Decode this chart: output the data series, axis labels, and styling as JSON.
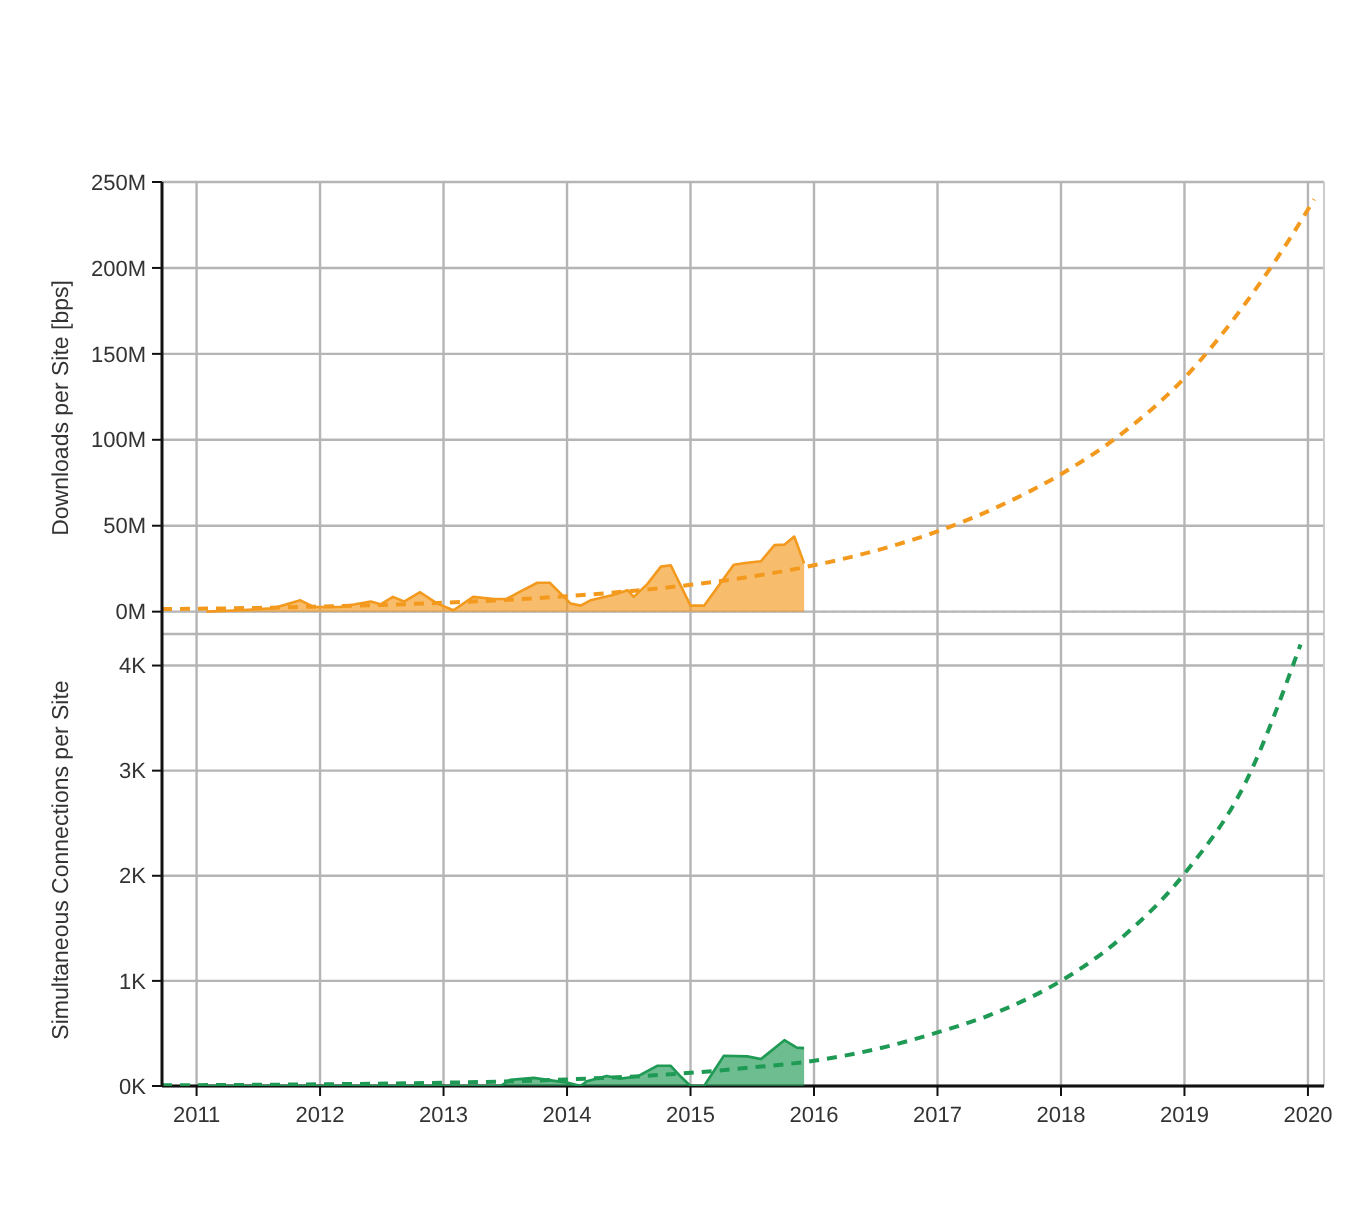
{
  "chart_data": [
    {
      "type": "area",
      "ylabel": "Downloads per Site [bps]",
      "xlim": [
        2010.72,
        2020.13
      ],
      "xticks": [
        2011,
        2012,
        2013,
        2014,
        2015,
        2016,
        2017,
        2018,
        2019,
        2020
      ],
      "ylim": [
        -13000000,
        250000000
      ],
      "yticks": [
        {
          "value": 0,
          "label": "0M"
        },
        {
          "value": 50000000,
          "label": "50M"
        },
        {
          "value": 100000000,
          "label": "100M"
        },
        {
          "value": 150000000,
          "label": "150M"
        },
        {
          "value": 200000000,
          "label": "200M"
        },
        {
          "value": 250000000,
          "label": "250M"
        }
      ],
      "grid": true,
      "tick_labels": "y",
      "ref_lines": [
        {
          "axis": "y",
          "value": 0,
          "color": "#bbbbbb",
          "line_style": "dotted"
        }
      ],
      "series": [
        {
          "color": "#f39a1e",
          "x": [
            2011.08,
            2011.35,
            2011.62,
            2011.84,
            2011.95,
            2012.16,
            2012.41,
            2012.49,
            2012.59,
            2012.68,
            2012.81,
            2012.95,
            2013.08,
            2013.24,
            2013.41,
            2013.51,
            2013.62,
            2013.76,
            2013.86,
            2014.03,
            2014.11,
            2014.19,
            2014.38,
            2014.49,
            2014.54,
            2014.65,
            2014.76,
            2014.84,
            2015.0,
            2015.11,
            2015.35,
            2015.46,
            2015.57,
            2015.68,
            2015.76,
            2015.84,
            2015.92
          ],
          "values": [
            0,
            800000,
            2000000,
            6600000,
            2700000,
            2700000,
            5900000,
            4300000,
            8600000,
            5900000,
            11300000,
            4700000,
            800000,
            8600000,
            7400000,
            7400000,
            11700000,
            16800000,
            16800000,
            4700000,
            3500000,
            6600000,
            9800000,
            12500000,
            8600000,
            16000000,
            26200000,
            27000000,
            3500000,
            3500000,
            27300000,
            28500000,
            29300000,
            38700000,
            39000000,
            43700000,
            28100000
          ]
        },
        {
          "type": "line",
          "line_style": "dashed",
          "color": "#f39a1e",
          "x": [
            2010.72,
            2011,
            2011.5,
            2012,
            2012.5,
            2013,
            2013.5,
            2014,
            2014.5,
            2015,
            2015.5,
            2016,
            2016.5,
            2017,
            2017.5,
            2018,
            2018.5,
            2019,
            2019.5,
            2020,
            2020.05
          ],
          "values": [
            1500000,
            1700000,
            2200000,
            3000000,
            3900000,
            5200000,
            6800000,
            9000000,
            11900000,
            15600000,
            20500000,
            27000000,
            35500000,
            46700000,
            61400000,
            80000000,
            104000000,
            136000000,
            180000000,
            234000000,
            240000000
          ]
        }
      ]
    },
    {
      "type": "area",
      "ylabel": "Simultaneous Connections per Site",
      "xlim": [
        2010.72,
        2020.13
      ],
      "xticks": [
        2011,
        2012,
        2013,
        2014,
        2015,
        2016,
        2017,
        2018,
        2019,
        2020
      ],
      "ylim": [
        0,
        4300
      ],
      "yticks": [
        {
          "value": 0,
          "label": "0K"
        },
        {
          "value": 1000,
          "label": "1K"
        },
        {
          "value": 2000,
          "label": "2K"
        },
        {
          "value": 3000,
          "label": "3K"
        },
        {
          "value": 4000,
          "label": "4K"
        }
      ],
      "grid": true,
      "series": [
        {
          "color": "#1f9a55",
          "x": [
            2011.08,
            2013.46,
            2013.54,
            2013.73,
            2013.84,
            2014.0,
            2014.11,
            2014.16,
            2014.32,
            2014.43,
            2014.57,
            2014.62,
            2014.73,
            2014.84,
            2014.92,
            2015.0,
            2015.11,
            2015.27,
            2015.46,
            2015.57,
            2015.76,
            2015.86,
            2015.92
          ],
          "values": [
            0,
            0,
            58,
            77,
            58,
            32,
            0,
            45,
            96,
            70,
            90,
            122,
            192,
            192,
            90,
            0,
            0,
            288,
            282,
            256,
            436,
            365,
            360
          ]
        },
        {
          "type": "line",
          "line_style": "dashed",
          "color": "#1f9a55",
          "x": [
            2010.72,
            2011,
            2012,
            2013,
            2014,
            2015,
            2015.5,
            2016,
            2016.5,
            2017,
            2017.5,
            2018,
            2018.5,
            2019,
            2019.5,
            2019.94
          ],
          "values": [
            6,
            8,
            16,
            31,
            62,
            125,
            177,
            240,
            350,
            510,
            710,
            1000,
            1420,
            2020,
            2900,
            4200
          ]
        }
      ]
    }
  ]
}
